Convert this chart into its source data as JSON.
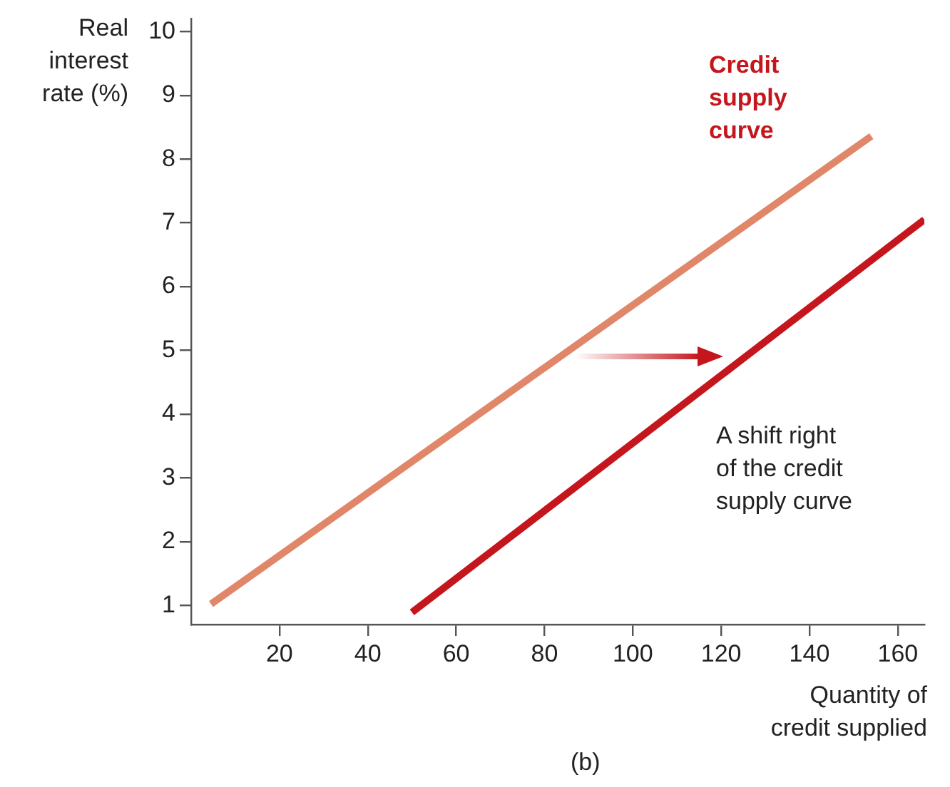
{
  "chart_data": {
    "type": "line",
    "xlabel": "Quantity of\ncredit supplied",
    "ylabel": "Real\ninterest\nrate (%)",
    "xlim": [
      0,
      166
    ],
    "ylim": [
      0.7,
      10.2
    ],
    "xticks": [
      20,
      40,
      60,
      80,
      100,
      120,
      140,
      160
    ],
    "yticks": [
      1,
      2,
      3,
      4,
      5,
      6,
      7,
      8,
      9,
      10
    ],
    "grid": false,
    "legend": false,
    "marker": "none",
    "line_style": "solid",
    "series": [
      {
        "color": "#e0876a",
        "x": [
          4.5,
          154
        ],
        "values": [
          1.02,
          8.36
        ]
      },
      {
        "color": "#c4161c",
        "x": [
          50,
          166
        ],
        "values": [
          0.89,
          7.05
        ]
      }
    ],
    "annotations": [
      "Credit\nsupply\ncurve",
      "A shift right\nof the credit\nsupply curve",
      "(b)"
    ]
  }
}
